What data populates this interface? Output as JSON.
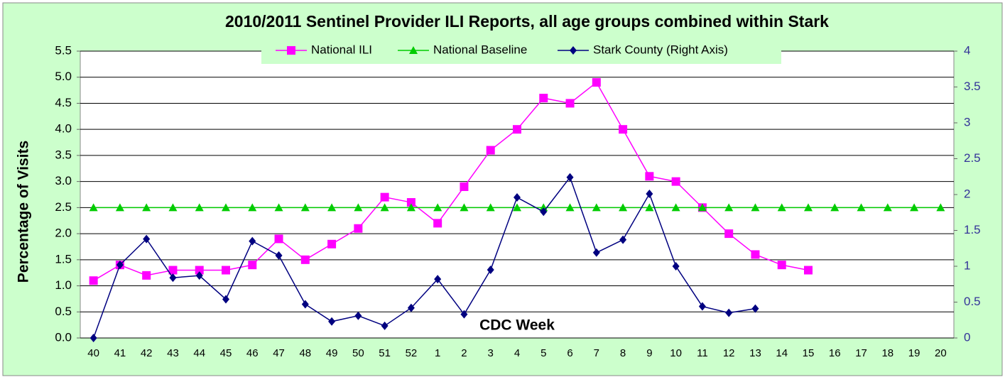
{
  "chart_data": {
    "type": "line",
    "title": "2010/2011 Sentinel Provider ILI Reports, all age groups combined within Stark",
    "y_label": "Percentage of Visits",
    "x_label": "CDC Week",
    "categories": [
      "40",
      "41",
      "42",
      "43",
      "44",
      "45",
      "46",
      "47",
      "48",
      "49",
      "50",
      "51",
      "52",
      "1",
      "2",
      "3",
      "4",
      "5",
      "6",
      "7",
      "8",
      "9",
      "10",
      "11",
      "12",
      "13",
      "14",
      "15",
      "16",
      "17",
      "18",
      "19",
      "20"
    ],
    "series": [
      {
        "name": "National ILI",
        "color": "#ff00ff",
        "marker": "square",
        "values": [
          1.1,
          1.4,
          1.2,
          1.3,
          1.3,
          1.3,
          1.4,
          1.9,
          1.5,
          1.8,
          2.1,
          2.7,
          2.6,
          2.2,
          2.9,
          3.6,
          4.0,
          4.6,
          4.5,
          4.9,
          4.0,
          3.1,
          3.0,
          2.5,
          2.0,
          1.6,
          1.4,
          1.3,
          null,
          null,
          null,
          null,
          null
        ]
      },
      {
        "name": "National Baseline",
        "color": "#00cc00",
        "marker": "triangle",
        "values": [
          2.5,
          2.5,
          2.5,
          2.5,
          2.5,
          2.5,
          2.5,
          2.5,
          2.5,
          2.5,
          2.5,
          2.5,
          2.5,
          2.5,
          2.5,
          2.5,
          2.5,
          2.5,
          2.5,
          2.5,
          2.5,
          2.5,
          2.5,
          2.5,
          2.5,
          2.5,
          2.5,
          2.5,
          2.5,
          2.5,
          2.5,
          2.5,
          2.5
        ]
      },
      {
        "name": "Stark County (Right Axis)",
        "color": "#000080",
        "marker": "diamond",
        "axis": "y2",
        "values": [
          0,
          1.02,
          1.38,
          0.84,
          0.87,
          0.54,
          1.35,
          1.15,
          0.47,
          0.23,
          0.31,
          0.17,
          0.42,
          0.82,
          0.33,
          0.95,
          1.96,
          1.76,
          2.24,
          1.19,
          1.37,
          2.01,
          1.0,
          0.44,
          0.35,
          0.41,
          null,
          null,
          null,
          null,
          null,
          null,
          null
        ]
      }
    ],
    "ylim": [
      0,
      5.5
    ],
    "yticks": [
      {
        "value": 0,
        "label": "0.0"
      },
      0.5,
      {
        "value": 1,
        "label": "1.0"
      },
      1.5,
      {
        "value": 2,
        "label": "2.0"
      },
      2.5,
      {
        "value": 3,
        "label": "3.0"
      },
      3.5,
      {
        "value": 4,
        "label": "4.0"
      },
      4.5,
      {
        "value": 5,
        "label": "5.0"
      },
      5.5
    ],
    "y2lim": [
      0,
      4
    ],
    "y2ticks": [
      0,
      0.5,
      1,
      1.5,
      2,
      2.5,
      3,
      3.5,
      4
    ],
    "grid": true,
    "legend": "top"
  }
}
